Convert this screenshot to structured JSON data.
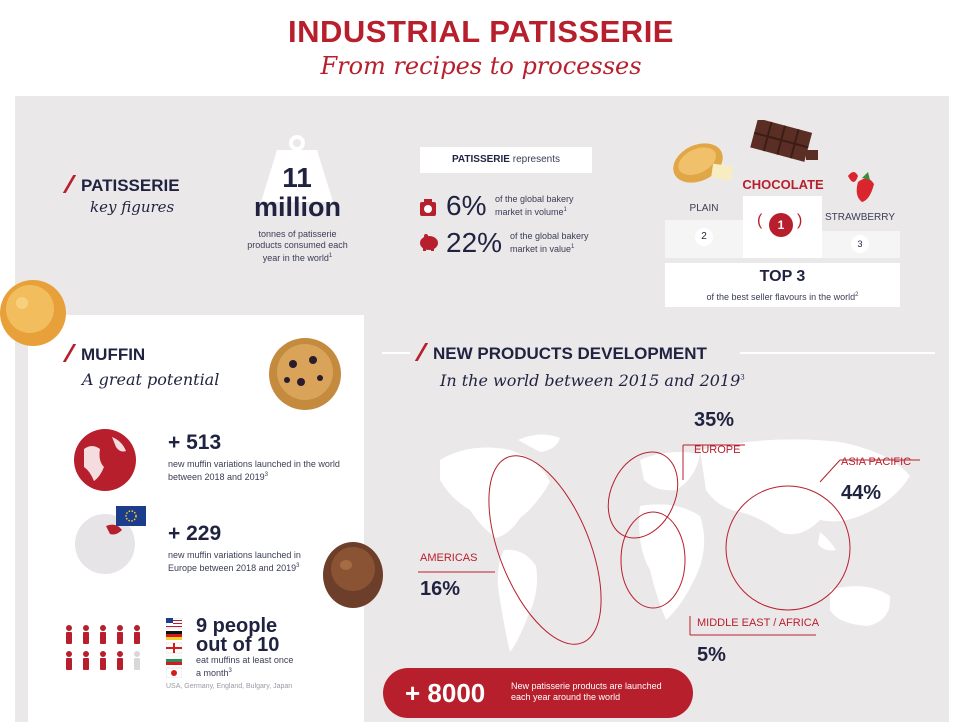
{
  "header": {
    "title": "INDUSTRIAL PATISSERIE",
    "subtitle": "From recipes to processes"
  },
  "key_figures": {
    "label": "PATISSERIE",
    "script": "key figures",
    "big_number": "11",
    "big_unit": "million",
    "desc": "tonnes of patisserie products consumed each year in the world",
    "desc_sup": "1"
  },
  "represents": {
    "header_bold": "PATISSERIE",
    "header_rest": "represents",
    "stat1_value": "6%",
    "stat1_text": "of the global bakery market in volume",
    "stat1_sup": "1",
    "stat2_value": "22%",
    "stat2_text": "of the global bakery market in value",
    "stat2_sup": "1"
  },
  "flavours": {
    "first": "CHOCOLATE",
    "first_rank": "1",
    "second": "PLAIN",
    "second_rank": "2",
    "third": "STRAWBERRY",
    "third_rank": "3",
    "top_title": "TOP 3",
    "top_desc": "of the best seller flavours in the world",
    "top_sup": "2"
  },
  "muffin": {
    "title": "MUFFIN",
    "script": "A great potential",
    "stat1_value": "+ 513",
    "stat1_text": "new muffin variations launched in the world between 2018 and 2019",
    "stat1_sup": "3",
    "stat2_value": "+ 229",
    "stat2_text": "new muffin variations launched in Europe between 2018 and 2019",
    "stat2_sup": "3",
    "people_line1": "9 people",
    "people_line2": "out of 10",
    "people_text": "eat muffins at least once a month",
    "people_sup": "3",
    "countries": "USA, Germany, England, Bulgary, Japan"
  },
  "npd": {
    "title": "NEW PRODUCTS DEVELOPMENT",
    "script": "In the world between 2015 and 2019",
    "script_sup": "3",
    "regions": [
      {
        "name": "EUROPE",
        "value": "35%"
      },
      {
        "name": "ASIA PACIFIC",
        "value": "44%"
      },
      {
        "name": "AMERICAS",
        "value": "16%"
      },
      {
        "name": "MIDDLE EAST / AFRICA",
        "value": "5%"
      }
    ],
    "pill_value": "+ 8000",
    "pill_text": "New patisserie products are launched each year around the world"
  },
  "colors": {
    "accent": "#b81f2d",
    "navy": "#1f2340",
    "panel": "#ebe8ea"
  }
}
